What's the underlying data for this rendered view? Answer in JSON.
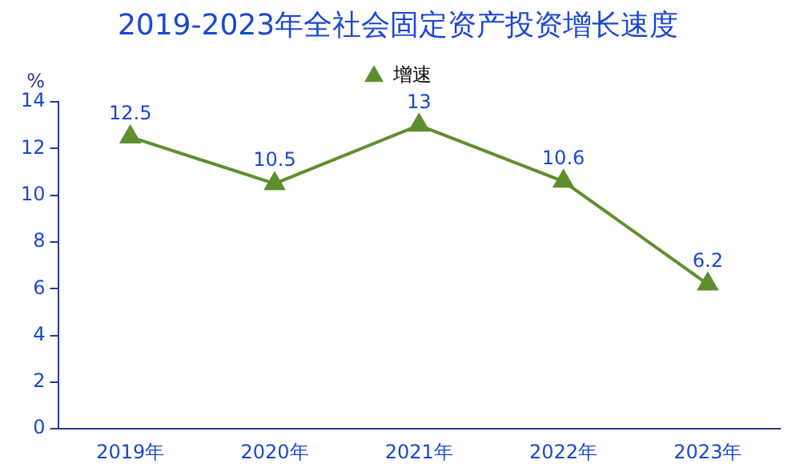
{
  "chart_data": {
    "type": "line",
    "title": "2019-2023年全社会固定资产投资增长速度",
    "ylabel": "%",
    "categories": [
      "2019年",
      "2020年",
      "2021年",
      "2022年",
      "2023年"
    ],
    "series": [
      {
        "name": "增速",
        "color": "#5e8f2e",
        "values": [
          12.5,
          10.5,
          13,
          10.6,
          6.2
        ]
      }
    ],
    "ylim": [
      0,
      14
    ],
    "yticks": [
      0,
      2,
      4,
      6,
      8,
      10,
      12,
      14
    ],
    "grid": false,
    "legend": "top",
    "marker": "triangle",
    "line_style": "solid",
    "data_labels": true
  }
}
